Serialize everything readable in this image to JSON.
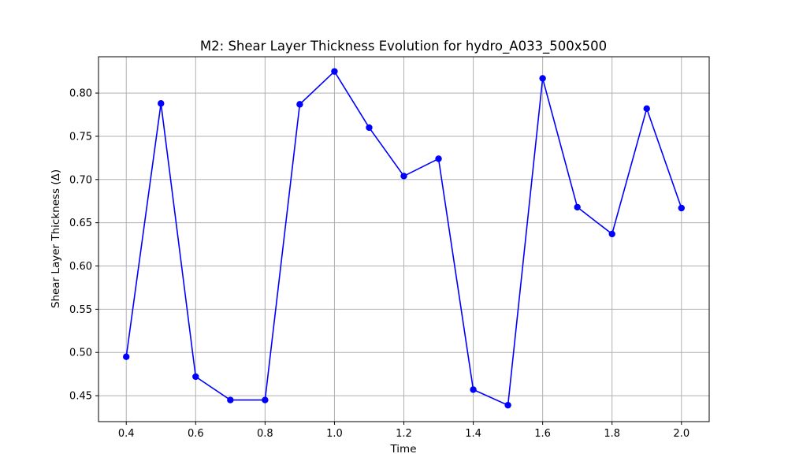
{
  "chart_data": {
    "type": "line",
    "title": "M2: Shear Layer Thickness Evolution for hydro_A033_500x500",
    "xlabel": "Time",
    "ylabel": "Shear Layer Thickness (Δ)",
    "xlim": [
      0.32,
      2.08
    ],
    "ylim": [
      0.42,
      0.842
    ],
    "xticks": [
      0.4,
      0.6,
      0.8,
      1.0,
      1.2,
      1.4,
      1.6,
      1.8,
      2.0
    ],
    "xtick_labels": [
      "0.4",
      "0.6",
      "0.8",
      "1.0",
      "1.2",
      "1.4",
      "1.6",
      "1.8",
      "2.0"
    ],
    "yticks": [
      0.45,
      0.5,
      0.55,
      0.6,
      0.65,
      0.7,
      0.75,
      0.8
    ],
    "ytick_labels": [
      "0.45",
      "0.50",
      "0.55",
      "0.60",
      "0.65",
      "0.70",
      "0.75",
      "0.80"
    ],
    "grid": true,
    "series": [
      {
        "name": "Shear Layer Thickness",
        "color": "#0000ff",
        "marker": "circle",
        "x": [
          0.4,
          0.5,
          0.6,
          0.7,
          0.8,
          0.9,
          1.0,
          1.1,
          1.2,
          1.3,
          1.4,
          1.5,
          1.6,
          1.7,
          1.8,
          1.9,
          2.0
        ],
        "values": [
          0.495,
          0.788,
          0.472,
          0.445,
          0.445,
          0.787,
          0.825,
          0.76,
          0.704,
          0.724,
          0.457,
          0.439,
          0.817,
          0.668,
          0.637,
          0.782,
          0.667
        ]
      }
    ]
  }
}
